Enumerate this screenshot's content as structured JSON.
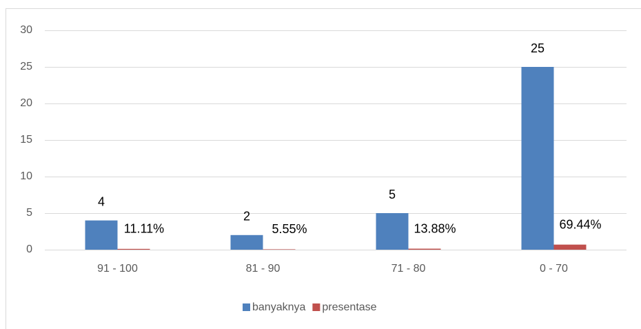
{
  "chart_data": {
    "type": "bar",
    "categories": [
      "91 - 100",
      "81 - 90",
      "71 - 80",
      "0 - 70"
    ],
    "series": [
      {
        "name": "banyaknya",
        "color": "#4f81bd",
        "values": [
          4,
          2,
          5,
          25
        ]
      },
      {
        "name": "presentase",
        "color": "#c0504d",
        "values": [
          0.1111,
          0.0555,
          0.1388,
          0.6944
        ],
        "value_labels": [
          "11.11%",
          "5.55%",
          "13.88%",
          "69.44%"
        ]
      }
    ],
    "ylim": [
      0,
      30
    ],
    "yticks": [
      0,
      5,
      10,
      15,
      20,
      25,
      30
    ],
    "grid": true,
    "legend": "bottom"
  }
}
